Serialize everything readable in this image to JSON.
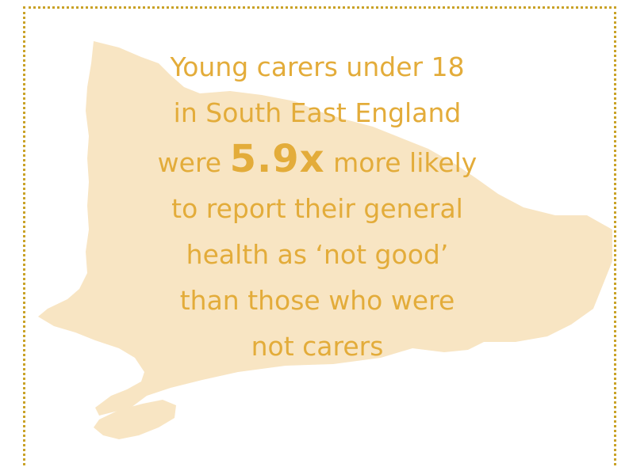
{
  "colors": {
    "border": "#c9a227",
    "text": "#e3ac3a",
    "map_fill": "#f8e5c3"
  },
  "infographic": {
    "line1": "Young carers under 18",
    "line2": "in South East England",
    "line3_pre": "were ",
    "highlight": "5.9x",
    "line3_post": " more likely",
    "line4": "to report their general",
    "line5": "health as ‘not good’",
    "line6": "than those who were",
    "line7": "not carers"
  }
}
